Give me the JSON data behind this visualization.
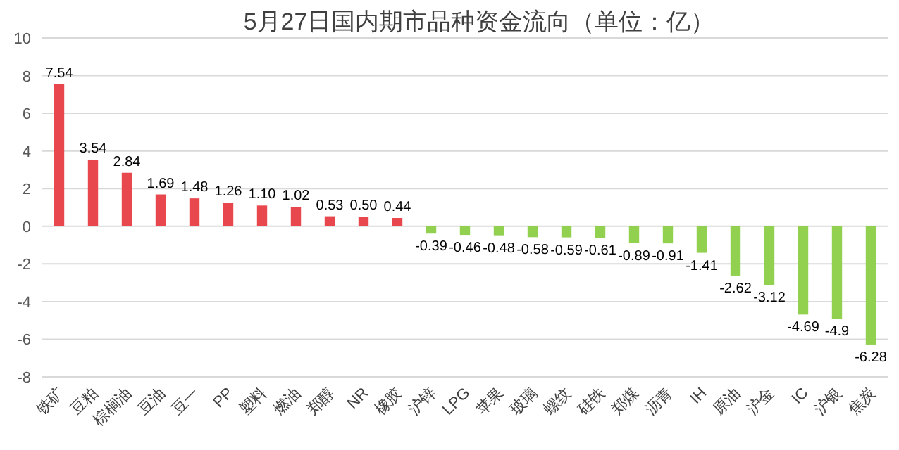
{
  "chart_data": {
    "type": "bar",
    "title": "5月27日国内期市品种资金流向（单位：亿）",
    "categories": [
      "铁矿",
      "豆粕",
      "棕榈油",
      "豆油",
      "豆一",
      "PP",
      "塑料",
      "燃油",
      "郑醇",
      "NR",
      "橡胶",
      "沪锌",
      "LPG",
      "苹果",
      "玻璃",
      "螺纹",
      "硅铁",
      "郑煤",
      "沥青",
      "IH",
      "原油",
      "沪金",
      "IC",
      "沪银",
      "焦炭"
    ],
    "values": [
      7.54,
      3.54,
      2.84,
      1.69,
      1.48,
      1.26,
      1.1,
      1.02,
      0.53,
      0.5,
      0.44,
      -0.39,
      -0.46,
      -0.48,
      -0.58,
      -0.59,
      -0.61,
      -0.89,
      -0.91,
      -1.41,
      -2.62,
      -3.12,
      -4.69,
      -4.9,
      -6.28
    ],
    "value_labels": [
      "7.54",
      "3.54",
      "2.84",
      "1.69",
      "1.48",
      "1.26",
      "1.10",
      "1.02",
      "0.53",
      "0.50",
      "0.44",
      "-0.39",
      "-0.46",
      "-0.48",
      "-0.58",
      "-0.59",
      "-0.61",
      "-0.89",
      "-0.91",
      "-1.41",
      "-2.62",
      "-3.12",
      "-4.69",
      "-4.9",
      "-6.28"
    ],
    "colors": [
      "#e8484d",
      "#e8484d",
      "#e8484d",
      "#e8484d",
      "#e8484d",
      "#e8484d",
      "#e8484d",
      "#e8484d",
      "#e8484d",
      "#e8484d",
      "#e8484d",
      "#92d050",
      "#92d050",
      "#92d050",
      "#92d050",
      "#92d050",
      "#92d050",
      "#92d050",
      "#92d050",
      "#92d050",
      "#92d050",
      "#92d050",
      "#92d050",
      "#92d050",
      "#92d050"
    ],
    "ylim": [
      -8,
      10
    ],
    "yticks": [
      -8,
      -6,
      -4,
      -2,
      0,
      2,
      4,
      6,
      8,
      10
    ],
    "grid": "y"
  }
}
